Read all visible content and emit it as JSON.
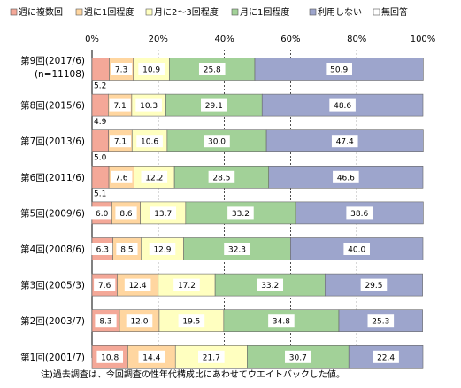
{
  "chart_data": {
    "type": "bar",
    "orientation": "horizontal",
    "stacked": true,
    "percent": true,
    "xlim": [
      0,
      100
    ],
    "x_ticks": [
      "0%",
      "20%",
      "40%",
      "60%",
      "80%",
      "100%"
    ],
    "legend_position": "top",
    "categories": [
      [
        "第9回(2017/6)",
        "(n=11108)"
      ],
      [
        "第8回(2015/6)"
      ],
      [
        "第7回(2013/6)"
      ],
      [
        "第6回(2011/6)"
      ],
      [
        "第5回(2009/6)"
      ],
      [
        "第4回(2008/6)"
      ],
      [
        "第3回(2005/3)"
      ],
      [
        "第2回(2003/7)"
      ],
      [
        "第1回(2001/7)"
      ]
    ],
    "series": [
      {
        "name": "週に複数回",
        "color": "#f4a898",
        "values": [
          5.2,
          4.9,
          5.0,
          5.1,
          6.0,
          6.3,
          7.6,
          8.3,
          10.8
        ]
      },
      {
        "name": "週に1回程度",
        "color": "#ffd6a0",
        "values": [
          7.3,
          7.1,
          7.1,
          7.6,
          8.6,
          8.5,
          12.4,
          12.0,
          14.4
        ]
      },
      {
        "name": "月に2～3回程度",
        "color": "#ffffc0",
        "values": [
          10.9,
          10.3,
          10.6,
          12.2,
          13.7,
          12.9,
          17.2,
          19.5,
          21.7
        ]
      },
      {
        "name": "月に1回程度",
        "color": "#a2d198",
        "values": [
          25.8,
          29.1,
          30.0,
          28.5,
          33.2,
          32.3,
          33.2,
          34.8,
          30.7
        ]
      },
      {
        "name": "利用しない",
        "color": "#9da5cc",
        "values": [
          50.9,
          48.6,
          47.4,
          46.6,
          38.6,
          40.0,
          29.5,
          25.3,
          22.4
        ]
      },
      {
        "name": "無回答",
        "color": "#ffffff",
        "values": [
          0,
          0,
          0,
          0,
          0,
          0,
          0,
          0,
          0
        ]
      }
    ],
    "value_labels": [
      [
        "5.2",
        "7.3",
        "10.9",
        "25.8",
        "50.9",
        ""
      ],
      [
        "4.9",
        "7.1",
        "10.3",
        "29.1",
        "48.6",
        ""
      ],
      [
        "5.0",
        "7.1",
        "10.6",
        "30.0",
        "47.4",
        ""
      ],
      [
        "5.1",
        "7.6",
        "12.2",
        "28.5",
        "46.6",
        ""
      ],
      [
        "6.0",
        "8.6",
        "13.7",
        "33.2",
        "38.6",
        ""
      ],
      [
        "6.3",
        "8.5",
        "12.9",
        "32.3",
        "40.0",
        ""
      ],
      [
        "7.6",
        "12.4",
        "17.2",
        "33.2",
        "29.5",
        ""
      ],
      [
        "8.3",
        "12.0",
        "19.5",
        "34.8",
        "25.3",
        ""
      ],
      [
        "10.8",
        "14.4",
        "21.7",
        "30.7",
        "22.4",
        ""
      ]
    ],
    "first_label_below": [
      true,
      true,
      true,
      true,
      false,
      false,
      false,
      false,
      false
    ]
  },
  "footnote": "注)過去調査は、今回調査の性年代構成比にあわせてウエイトバックした値。"
}
